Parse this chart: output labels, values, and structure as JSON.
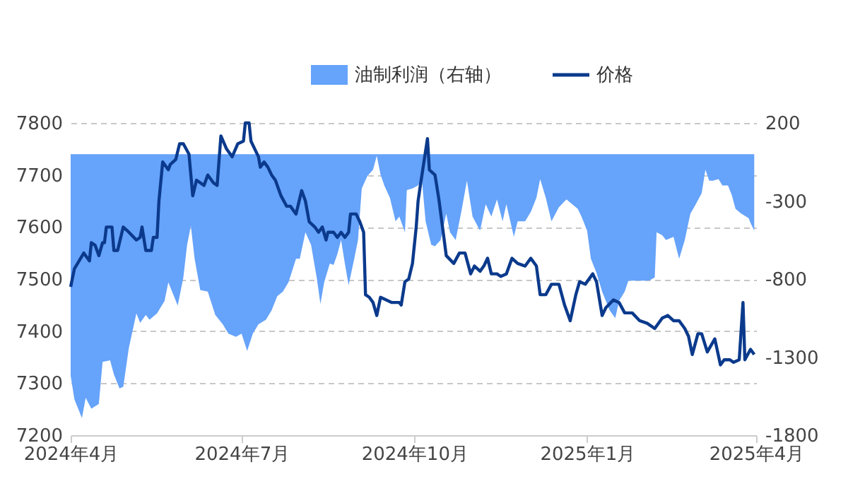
{
  "chart_data": {
    "type": "line",
    "legend": "top",
    "grid": "y",
    "xlim": [
      "2024-04-01",
      "2025-04-01"
    ],
    "xticks": [
      {
        "value": "2024-04-01",
        "label": "2024年4月"
      },
      {
        "value": "2024-07-01",
        "label": "2024年7月"
      },
      {
        "value": "2024-10-01",
        "label": "2024年10月"
      },
      {
        "value": "2025-01-01",
        "label": "2025年1月"
      },
      {
        "value": "2025-04-01",
        "label": "2025年4月"
      }
    ],
    "ylim": [
      7200,
      7800
    ],
    "yticks": [
      7200,
      7300,
      7400,
      7500,
      7600,
      7700,
      7800
    ],
    "y2lim": [
      -1800,
      200
    ],
    "y2ticks": [
      200,
      -300,
      -800,
      -1300,
      -1800
    ],
    "series": [
      {
        "name": "油制利润（右轴）",
        "type": "area",
        "axis": "y2",
        "color": "#66a3fa",
        "x": [
          "2024-04-01",
          "2024-04-03",
          "2024-04-07",
          "2024-04-09",
          "2024-04-12",
          "2024-04-16",
          "2024-04-18",
          "2024-04-22",
          "2024-04-24",
          "2024-04-27",
          "2024-04-29",
          "2024-05-02",
          "2024-05-06",
          "2024-05-08",
          "2024-05-11",
          "2024-05-13",
          "2024-05-17",
          "2024-05-21",
          "2024-05-23",
          "2024-05-28",
          "2024-05-31",
          "2024-06-02",
          "2024-06-04",
          "2024-06-06",
          "2024-06-09",
          "2024-06-13",
          "2024-06-17",
          "2024-06-21",
          "2024-06-24",
          "2024-06-28",
          "2024-07-01",
          "2024-07-04",
          "2024-07-07",
          "2024-07-10",
          "2024-07-14",
          "2024-07-17",
          "2024-07-20",
          "2024-07-23",
          "2024-07-26",
          "2024-07-30",
          "2024-08-01",
          "2024-08-04",
          "2024-08-07",
          "2024-08-10",
          "2024-08-12",
          "2024-08-14",
          "2024-08-17",
          "2024-08-19",
          "2024-08-21",
          "2024-08-23",
          "2024-08-25",
          "2024-08-27",
          "2024-08-30",
          "2024-09-01",
          "2024-09-03",
          "2024-09-06",
          "2024-09-09",
          "2024-09-11",
          "2024-09-13",
          "2024-09-15",
          "2024-09-18",
          "2024-09-21",
          "2024-09-23",
          "2024-09-26",
          "2024-09-27",
          "2024-09-30",
          "2024-10-03",
          "2024-10-05",
          "2024-10-07",
          "2024-10-10",
          "2024-10-12",
          "2024-10-15",
          "2024-10-18",
          "2024-10-20",
          "2024-10-23",
          "2024-10-26",
          "2024-10-29",
          "2024-11-01",
          "2024-11-05",
          "2024-11-08",
          "2024-11-11",
          "2024-11-14",
          "2024-11-17",
          "2024-11-19",
          "2024-11-23",
          "2024-11-25",
          "2024-11-29",
          "2024-12-02",
          "2024-12-05",
          "2024-12-07",
          "2024-12-10",
          "2024-12-13",
          "2024-12-17",
          "2024-12-21",
          "2024-12-23",
          "2024-12-27",
          "2024-12-29",
          "2025-01-01",
          "2025-01-03",
          "2025-01-06",
          "2025-01-09",
          "2025-01-13",
          "2025-01-16",
          "2025-01-18",
          "2025-01-21",
          "2025-01-23",
          "2025-01-28",
          "2025-02-03",
          "2025-02-06",
          "2025-02-07",
          "2025-02-10",
          "2025-02-12",
          "2025-02-16",
          "2025-02-19",
          "2025-02-22",
          "2025-02-25",
          "2025-02-27",
          "2025-03-03",
          "2025-03-05",
          "2025-03-07",
          "2025-03-09",
          "2025-03-12",
          "2025-03-14",
          "2025-03-17",
          "2025-03-19",
          "2025-03-21",
          "2025-03-24",
          "2025-03-28",
          "2025-03-29",
          "2025-03-31"
        ],
        "values": [
          -1420,
          -1570,
          -1690,
          -1560,
          -1630,
          -1600,
          -1330,
          -1320,
          -1410,
          -1500,
          -1490,
          -1240,
          -1020,
          -1080,
          -1030,
          -1060,
          -1020,
          -940,
          -820,
          -970,
          -790,
          -580,
          -460,
          -670,
          -870,
          -880,
          -1030,
          -1090,
          -1150,
          -1170,
          -1150,
          -1260,
          -1150,
          -1090,
          -1060,
          -1000,
          -910,
          -880,
          -820,
          -670,
          -670,
          -500,
          -580,
          -790,
          -960,
          -820,
          -700,
          -710,
          -640,
          -550,
          -700,
          -840,
          -670,
          -550,
          -220,
          -140,
          -100,
          -10,
          -130,
          -200,
          -280,
          -430,
          -400,
          -500,
          -230,
          -220,
          -200,
          -160,
          -430,
          -580,
          -590,
          -550,
          -380,
          -500,
          -550,
          -370,
          -170,
          -400,
          -490,
          -320,
          -400,
          -290,
          -430,
          -320,
          -530,
          -430,
          -430,
          -370,
          -280,
          -160,
          -280,
          -430,
          -340,
          -290,
          -310,
          -350,
          -400,
          -490,
          -670,
          -760,
          -880,
          -1000,
          -1050,
          -940,
          -880,
          -810,
          -810,
          -810,
          -790,
          -500,
          -520,
          -550,
          -530,
          -670,
          -550,
          -380,
          -340,
          -250,
          -100,
          -170,
          -170,
          -160,
          -200,
          -200,
          -260,
          -350,
          -380,
          -410,
          -440,
          -490
        ]
      },
      {
        "name": "价格",
        "axis": "y",
        "color": "#0b3a8c",
        "x": [
          "2024-04-01",
          "2024-04-03",
          "2024-04-08",
          "2024-04-11",
          "2024-04-12",
          "2024-04-14",
          "2024-04-16",
          "2024-04-18",
          "2024-04-19",
          "2024-04-20",
          "2024-04-23",
          "2024-04-24",
          "2024-04-26",
          "2024-04-29",
          "2024-05-02",
          "2024-05-06",
          "2024-05-08",
          "2024-05-09",
          "2024-05-11",
          "2024-05-14",
          "2024-05-15",
          "2024-05-17",
          "2024-05-18",
          "2024-05-20",
          "2024-05-23",
          "2024-05-24",
          "2024-05-27",
          "2024-05-29",
          "2024-05-31",
          "2024-06-03",
          "2024-06-05",
          "2024-06-07",
          "2024-06-11",
          "2024-06-13",
          "2024-06-16",
          "2024-06-18",
          "2024-06-20",
          "2024-06-23",
          "2024-06-26",
          "2024-06-29",
          "2024-07-02",
          "2024-07-03",
          "2024-07-05",
          "2024-07-06",
          "2024-07-10",
          "2024-07-11",
          "2024-07-13",
          "2024-07-15",
          "2024-07-17",
          "2024-07-19",
          "2024-07-22",
          "2024-07-25",
          "2024-07-27",
          "2024-07-30",
          "2024-08-02",
          "2024-08-04",
          "2024-08-06",
          "2024-08-09",
          "2024-08-11",
          "2024-08-13",
          "2024-08-15",
          "2024-08-16",
          "2024-08-19",
          "2024-08-21",
          "2024-08-23",
          "2024-08-25",
          "2024-08-27",
          "2024-08-28",
          "2024-08-31",
          "2024-09-02",
          "2024-09-04",
          "2024-09-05",
          "2024-09-07",
          "2024-09-09",
          "2024-09-11",
          "2024-09-13",
          "2024-09-16",
          "2024-09-19",
          "2024-09-23",
          "2024-09-24",
          "2024-09-26",
          "2024-09-28",
          "2024-09-30",
          "2024-10-02",
          "2024-10-03",
          "2024-10-04",
          "2024-10-08",
          "2024-10-09",
          "2024-10-12",
          "2024-10-14",
          "2024-10-18",
          "2024-10-22",
          "2024-10-25",
          "2024-10-28",
          "2024-10-31",
          "2024-11-02",
          "2024-11-05",
          "2024-11-07",
          "2024-11-09",
          "2024-11-11",
          "2024-11-14",
          "2024-11-16",
          "2024-11-19",
          "2024-11-22",
          "2024-11-25",
          "2024-11-29",
          "2024-12-02",
          "2024-12-05",
          "2024-12-07",
          "2024-12-10",
          "2024-12-13",
          "2024-12-17",
          "2024-12-20",
          "2024-12-23",
          "2024-12-26",
          "2024-12-28",
          "2024-12-31",
          "2025-01-04",
          "2025-01-06",
          "2025-01-09",
          "2025-01-11",
          "2025-01-15",
          "2025-01-18",
          "2025-01-21",
          "2025-01-25",
          "2025-01-29",
          "2025-02-02",
          "2025-02-06",
          "2025-02-10",
          "2025-02-13",
          "2025-02-16",
          "2025-02-19",
          "2025-02-22",
          "2025-02-24",
          "2025-02-26",
          "2025-03-01",
          "2025-03-03",
          "2025-03-06",
          "2025-03-10",
          "2025-03-13",
          "2025-03-15",
          "2025-03-18",
          "2025-03-20",
          "2025-03-23",
          "2025-03-25",
          "2025-03-26",
          "2025-03-29",
          "2025-03-31"
        ],
        "values": [
          7485,
          7520,
          7550,
          7535,
          7570,
          7565,
          7545,
          7570,
          7570,
          7600,
          7600,
          7555,
          7555,
          7600,
          7590,
          7575,
          7580,
          7600,
          7555,
          7555,
          7580,
          7580,
          7650,
          7725,
          7710,
          7720,
          7730,
          7760,
          7760,
          7740,
          7660,
          7690,
          7680,
          7700,
          7685,
          7680,
          7775,
          7750,
          7735,
          7760,
          7765,
          7800,
          7800,
          7765,
          7735,
          7715,
          7725,
          7715,
          7700,
          7690,
          7660,
          7640,
          7640,
          7625,
          7670,
          7650,
          7610,
          7600,
          7590,
          7600,
          7575,
          7590,
          7590,
          7580,
          7590,
          7580,
          7590,
          7625,
          7625,
          7610,
          7590,
          7470,
          7465,
          7455,
          7430,
          7465,
          7460,
          7455,
          7455,
          7450,
          7495,
          7500,
          7530,
          7600,
          7650,
          7675,
          7770,
          7710,
          7700,
          7655,
          7545,
          7530,
          7550,
          7550,
          7510,
          7525,
          7515,
          7525,
          7540,
          7510,
          7510,
          7505,
          7510,
          7540,
          7530,
          7525,
          7540,
          7525,
          7470,
          7470,
          7490,
          7490,
          7450,
          7420,
          7470,
          7495,
          7490,
          7510,
          7495,
          7430,
          7445,
          7460,
          7455,
          7435,
          7435,
          7420,
          7415,
          7405,
          7425,
          7430,
          7420,
          7420,
          7405,
          7390,
          7355,
          7395,
          7395,
          7360,
          7385,
          7335,
          7345,
          7345,
          7340,
          7345,
          7455,
          7345,
          7365,
          7355
        ]
      }
    ]
  }
}
